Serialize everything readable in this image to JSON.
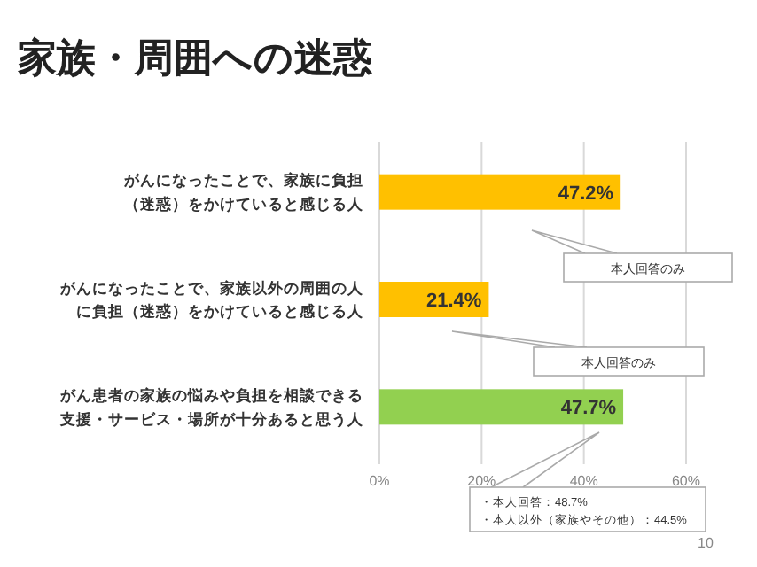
{
  "chart_data": {
    "type": "bar",
    "orientation": "horizontal",
    "title": "家族・周囲への迷惑",
    "categories": [
      "がんになったことで、家族に負担（迷惑）をかけていると感じる人",
      "がんになったことで、家族以外の周囲の人に負担（迷惑）をかけていると感じる人",
      "がん患者の家族の悩みや負担を相談できる支援・サービス・場所が十分あると思う人"
    ],
    "values": [
      47.2,
      21.4,
      47.7
    ],
    "colors": [
      "#ffc000",
      "#ffc000",
      "#92d050"
    ],
    "value_labels": [
      "47.2%",
      "21.4%",
      "47.7%"
    ],
    "xlim": [
      0,
      60
    ],
    "xticks": [
      {
        "value": 0,
        "label": "0%"
      },
      {
        "value": 20,
        "label": "20%"
      },
      {
        "value": 40,
        "label": "40%"
      },
      {
        "value": 60,
        "label": "60%"
      }
    ],
    "grid": "x",
    "annotations": [
      "本人回答のみ",
      "本人回答のみ",
      "・本人回答：48.7%\n・本人以外（家族やその他）：44.5%",
      "10"
    ]
  }
}
